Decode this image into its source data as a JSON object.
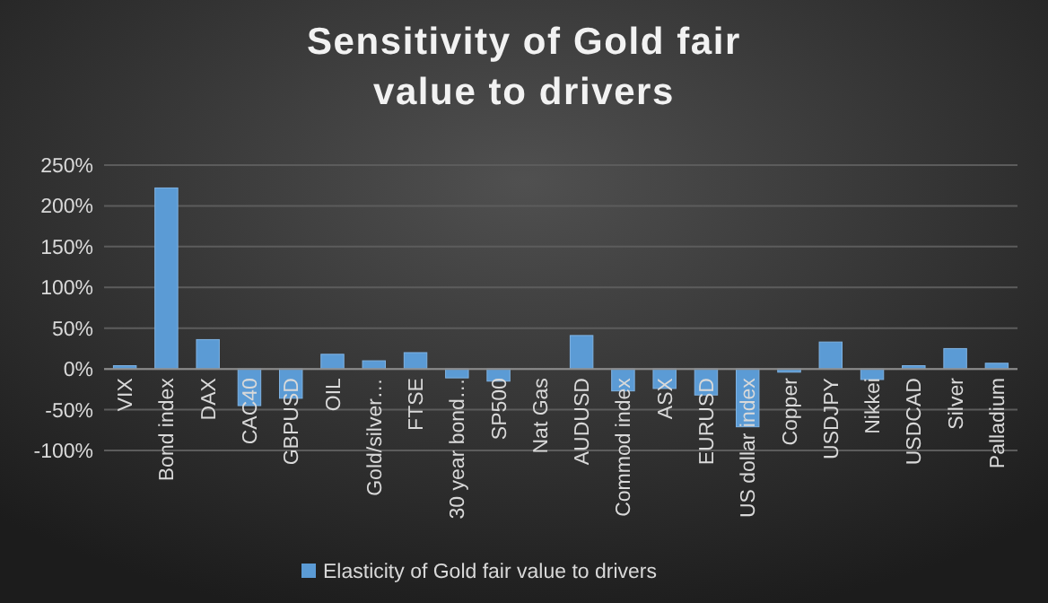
{
  "chart_data": {
    "type": "bar",
    "title": "Sensitivity of Gold fair value to drivers",
    "categories": [
      "VIX",
      "Bond index",
      "DAX",
      "CAC40",
      "GBPUSD",
      "OIL",
      "Gold/silver…",
      "FTSE",
      "30 year bond…",
      "SP500",
      "Nat Gas",
      "AUDUSD",
      "Commod index",
      "ASX",
      "EURUSD",
      "US dollar index",
      "Copper",
      "USDJPY",
      "Nikkei",
      "USDCAD",
      "Silver",
      "Palladium"
    ],
    "series": [
      {
        "name": "Elasticity of Gold fair value to drivers",
        "color": "#5b9bd5",
        "values": [
          4,
          222,
          36,
          -45,
          -36,
          18,
          10,
          20,
          -11,
          -15,
          0,
          41,
          -27,
          -24,
          -32,
          -71,
          -4,
          33,
          -13,
          4,
          25,
          7
        ]
      }
    ],
    "ylim": [
      -100,
      250
    ],
    "yticks": [
      {
        "value": -100,
        "label": "-100%"
      },
      {
        "value": -50,
        "label": "-50%"
      },
      {
        "value": 0,
        "label": "0%"
      },
      {
        "value": 50,
        "label": "50%"
      },
      {
        "value": 100,
        "label": "100%"
      },
      {
        "value": 150,
        "label": "150%"
      },
      {
        "value": 200,
        "label": "200%"
      },
      {
        "value": 250,
        "label": "250%"
      }
    ],
    "grid": "y",
    "legend": "bottom"
  }
}
